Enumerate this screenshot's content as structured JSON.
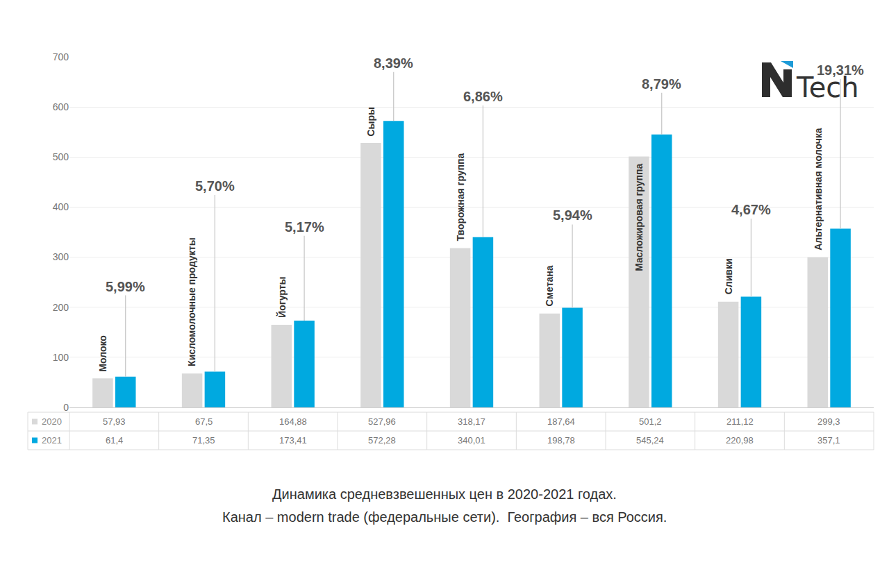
{
  "chart_data": {
    "type": "bar",
    "categories": [
      "Молоко",
      "Кисломолочные продукты",
      "Йогурты",
      "Сыры",
      "Творожная группа",
      "Сметана",
      "Масложировая группа",
      "Сливки",
      "Альтернативная молочка"
    ],
    "series": [
      {
        "name": "2020",
        "color": "#d9d9d9",
        "values": [
          57.93,
          67.5,
          164.88,
          527.96,
          318.17,
          187.64,
          501.2,
          211.12,
          299.3
        ],
        "value_labels": [
          "57,93",
          "67,5",
          "164,88",
          "527,96",
          "318,17",
          "187,64",
          "501,2",
          "211,12",
          "299,3"
        ]
      },
      {
        "name": "2021",
        "color": "#00a9e0",
        "values": [
          61.4,
          71.35,
          173.41,
          572.28,
          340.01,
          198.78,
          545.24,
          220.98,
          357.1
        ],
        "value_labels": [
          "61,4",
          "71,35",
          "173,41",
          "572,28",
          "340,01",
          "198,78",
          "545,24",
          "220,98",
          "357,1"
        ]
      }
    ],
    "annotations": [
      {
        "category": "Молоко",
        "text": "5,99%"
      },
      {
        "category": "Кисломолочные продукты",
        "text": "5,70%"
      },
      {
        "category": "Йогурты",
        "text": "5,17%"
      },
      {
        "category": "Сыры",
        "text": "8,39%"
      },
      {
        "category": "Творожная группа",
        "text": "6,86%"
      },
      {
        "category": "Сметана",
        "text": "5,94%"
      },
      {
        "category": "Масложировая группа",
        "text": "8,79%"
      },
      {
        "category": "Сливки",
        "text": "4,67%"
      },
      {
        "category": "Альтернативная молочка",
        "text": "19,31%"
      }
    ],
    "ylim": [
      0,
      700
    ],
    "yticks": [
      0,
      100,
      200,
      300,
      400,
      500,
      600,
      700
    ],
    "grid": true,
    "tick_labels": "y"
  },
  "caption": [
    "Динамика средневзвешенных цен в 2020-2021 годах.",
    "Канал – modern trade (федеральные сети).  География – вся Россия."
  ],
  "logo": "Tech"
}
